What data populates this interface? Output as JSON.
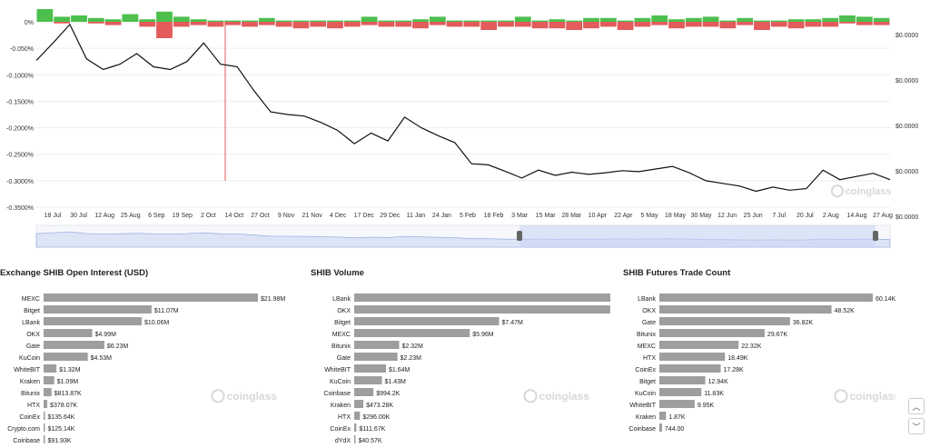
{
  "chart_data": [
    {
      "type": "line",
      "title": "",
      "xlabel": "",
      "ylabel": "",
      "ylim": [
        -0.35,
        0
      ],
      "y_ticks": [
        "0%",
        "-0.050%",
        "-0.1000%",
        "-0.1500%",
        "-0.2000%",
        "-0.2500%",
        "-0.3000%",
        "-0.3500%"
      ],
      "right_axis_ticks": [
        "$0.0000",
        "$0.0000",
        "$0.0000",
        "$0.0000",
        "$0.0000"
      ],
      "x_ticks": [
        "18 Jul",
        "30 Jul",
        "12 Aug",
        "25 Aug",
        "6 Sep",
        "19 Sep",
        "2 Oct",
        "14 Oct",
        "27 Oct",
        "9 Nov",
        "21 Nov",
        "4 Dec",
        "17 Dec",
        "29 Dec",
        "11 Jan",
        "24 Jan",
        "5 Feb",
        "18 Feb",
        "3 Mar",
        "15 Mar",
        "28 Mar",
        "10 Apr",
        "22 Apr",
        "5 May",
        "18 May",
        "30 May",
        "12 Jun",
        "25 Jun",
        "7 Jul",
        "20 Jul",
        "2 Aug",
        "14 Aug",
        "27 Aug"
      ],
      "series": [
        {
          "values": [
            -0.073,
            -0.04,
            -0.005,
            -0.07,
            -0.09,
            -0.08,
            -0.06,
            -0.085,
            -0.09,
            -0.075,
            -0.04,
            -0.08,
            -0.085,
            -0.13,
            -0.17,
            -0.175,
            -0.178,
            -0.19,
            -0.205,
            -0.23,
            -0.21,
            -0.225,
            -0.18,
            -0.2,
            -0.215,
            -0.228,
            -0.268,
            -0.27,
            -0.282,
            -0.295,
            -0.28,
            -0.29,
            -0.284,
            -0.288,
            -0.285,
            -0.281,
            -0.283,
            -0.278,
            -0.273,
            -0.285,
            -0.3,
            -0.305,
            -0.31,
            -0.32,
            -0.312,
            -0.318,
            -0.315,
            -0.28,
            -0.298,
            -0.292,
            -0.286,
            -0.298
          ]
        }
      ],
      "histogram": {
        "green": [
          1,
          0.4,
          0.5,
          0.3,
          0.2,
          0.6,
          0.2,
          0.8,
          0.4,
          0.2,
          0.1,
          0.1,
          0.1,
          0.3,
          0.1,
          0.1,
          0.1,
          0.1,
          0.1,
          0.4,
          0.1,
          0.1,
          0.2,
          0.4,
          0.1,
          0.1,
          0.1,
          0.1,
          0.4,
          0.1,
          0.2,
          0.1,
          0.3,
          0.3,
          0.1,
          0.3,
          0.5,
          0.2,
          0.3,
          0.4,
          0.1,
          0.3,
          0.1,
          0.1,
          0.2,
          0.2,
          0.3,
          0.5,
          0.4,
          0.3
        ],
        "red": [
          0,
          0.1,
          0,
          0.1,
          0.2,
          0,
          0.3,
          1,
          0.3,
          0.2,
          0.3,
          0.2,
          0.3,
          0.2,
          0.3,
          0.4,
          0.3,
          0.4,
          0.3,
          0.2,
          0.3,
          0.3,
          0.4,
          0.2,
          0.3,
          0.3,
          0.5,
          0.3,
          0.3,
          0.4,
          0.4,
          0.5,
          0.4,
          0.3,
          0.5,
          0.3,
          0.2,
          0.4,
          0.3,
          0.3,
          0.4,
          0.2,
          0.5,
          0.3,
          0.4,
          0.3,
          0.3,
          0.1,
          0.2,
          0.2
        ]
      },
      "colors": {
        "line": "#111111",
        "positive": "#4cbf4c",
        "negative": "#e35b5b",
        "navigator": "#9eb2e4"
      },
      "watermark": "coinglass"
    },
    {
      "type": "bar",
      "title": "Exchange SHIB Open Interest (USD)",
      "categories": [
        "MEXC",
        "Bitget",
        "LBank",
        "OKX",
        "Gate",
        "KuCoin",
        "WhiteBIT",
        "Kraken",
        "Bitunix",
        "HTX",
        "CoinEx",
        "Crypto.com",
        "Coinbase"
      ],
      "values": [
        21.98,
        11.07,
        10.06,
        4.99,
        6.23,
        4.53,
        1.32,
        1.09,
        0.81387,
        0.37807,
        0.13564,
        0.12514,
        0.09193
      ],
      "labels": [
        "$21.98M",
        "$11.07M",
        "$10.06M",
        "$4.99M",
        "$6.23M",
        "$4.53M",
        "$1.32M",
        "$1.09M",
        "$813.87K",
        "$378.07K",
        "$135.64K",
        "$125.14K",
        "$91.93K"
      ],
      "watermark": "coinglass"
    },
    {
      "type": "bar",
      "title": "SHIB Volume",
      "categories": [
        "LBank",
        "OKX",
        "Bitget",
        "MEXC",
        "Bitunix",
        "Gate",
        "WhiteBIT",
        "KuCoin",
        "Coinbase",
        "Kraken",
        "HTX",
        "CoinEx",
        "dYdX"
      ],
      "values": [
        14.33,
        13.2,
        7.47,
        5.96,
        2.32,
        2.23,
        1.64,
        1.43,
        0.9942,
        0.47328,
        0.296,
        0.11167,
        0.04057
      ],
      "labels": [
        "$14.33M",
        "$13.20M",
        "$7.47M",
        "$5.96M",
        "$2.32M",
        "$2.23M",
        "$1.64M",
        "$1.43M",
        "$994.2K",
        "$473.28K",
        "$296.00K",
        "$111.67K",
        "$40.57K"
      ],
      "watermark": "coinglass"
    },
    {
      "type": "bar",
      "title": "SHIB Futures Trade Count",
      "categories": [
        "LBank",
        "OKX",
        "Gate",
        "Bitunix",
        "MEXC",
        "HTX",
        "CoinEx",
        "Bitget",
        "KuCoin",
        "WhiteBIT",
        "Kraken",
        "Coinbase"
      ],
      "values": [
        60.14,
        48.52,
        36.82,
        29.67,
        22.32,
        18.49,
        17.28,
        12.94,
        11.83,
        9.95,
        1.87,
        0.744
      ],
      "labels": [
        "60.14K",
        "48.52K",
        "36.82K",
        "29.67K",
        "22.32K",
        "18.49K",
        "17.28K",
        "12.94K",
        "11.83K",
        "9.95K",
        "1.87K",
        "744.00"
      ],
      "watermark": "coinglass"
    }
  ],
  "controls": {
    "scroll_up_icon": "chevron-up-icon",
    "scroll_down_icon": "chevron-down-icon",
    "up_glyph": "︿",
    "down_glyph": "﹀"
  }
}
